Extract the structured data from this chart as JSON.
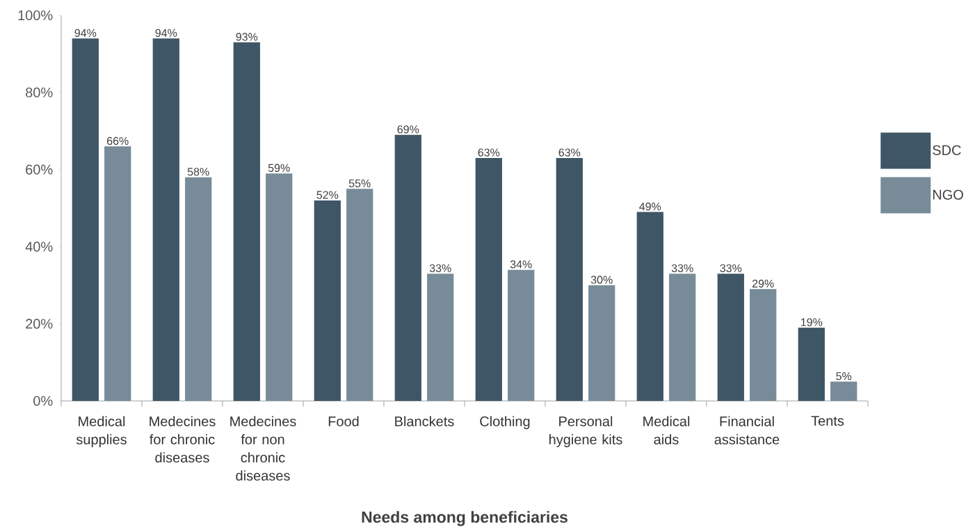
{
  "chart_data": {
    "type": "bar",
    "xlabel": "Needs among beneficiaries",
    "categories": [
      "Medical supplies",
      "Medecines for chronic diseases",
      "Medecines for non chronic diseases",
      "Food",
      "Blanckets",
      "Clothing",
      "Personal hygiene kits",
      "Medical aids",
      "Financial assistance",
      "Tents"
    ],
    "series": [
      {
        "name": "SDC",
        "color": "#3f5666",
        "values": [
          94,
          94,
          93,
          52,
          69,
          63,
          63,
          49,
          33,
          19
        ],
        "value_labels": [
          "94%",
          "94%",
          "93%",
          "52%",
          "69%",
          "63%",
          "63%",
          "49%",
          "33%",
          "19%"
        ]
      },
      {
        "name": "NGO",
        "color": "#778c98",
        "values": [
          66,
          58,
          59,
          55,
          33,
          34,
          30,
          33,
          29,
          5
        ],
        "value_labels": [
          "66%",
          "58%",
          "59%",
          "55%",
          "33%",
          "34%",
          "30%",
          "33%",
          "29%",
          "5%"
        ]
      }
    ],
    "ylim": [
      0,
      100
    ],
    "yticks": [
      {
        "value": 0,
        "label": "0%"
      },
      {
        "value": 20,
        "label": "20%"
      },
      {
        "value": 40,
        "label": "40%"
      },
      {
        "value": 60,
        "label": "60%"
      },
      {
        "value": 80,
        "label": "80%"
      },
      {
        "value": 100,
        "label": "100%"
      }
    ],
    "grid": false,
    "legend": "right"
  }
}
